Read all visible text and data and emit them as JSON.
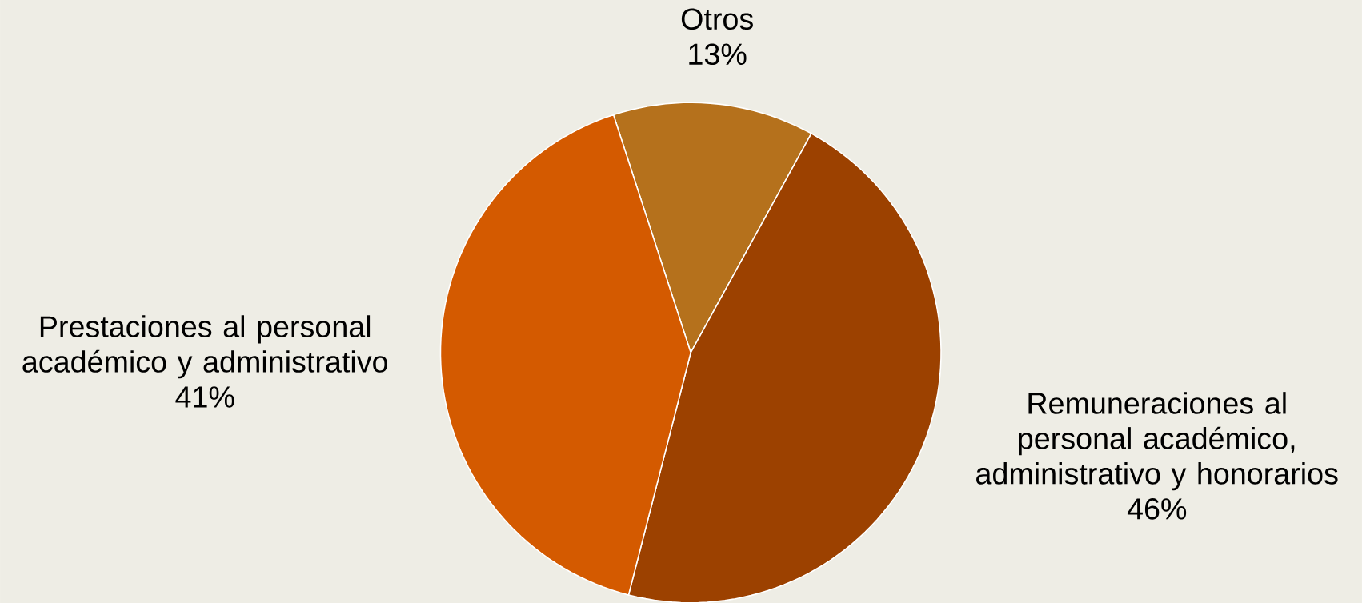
{
  "chart_data": {
    "type": "pie",
    "categories": [
      "Otros",
      "Remuneraciones al personal académico, administrativo y honorarios",
      "Prestaciones al personal académico y administrativo"
    ],
    "values": [
      13,
      46,
      41
    ],
    "value_labels": [
      "13%",
      "46%",
      "41%"
    ],
    "colors": [
      "#b5711c",
      "#9c4100",
      "#d45a00"
    ]
  }
}
